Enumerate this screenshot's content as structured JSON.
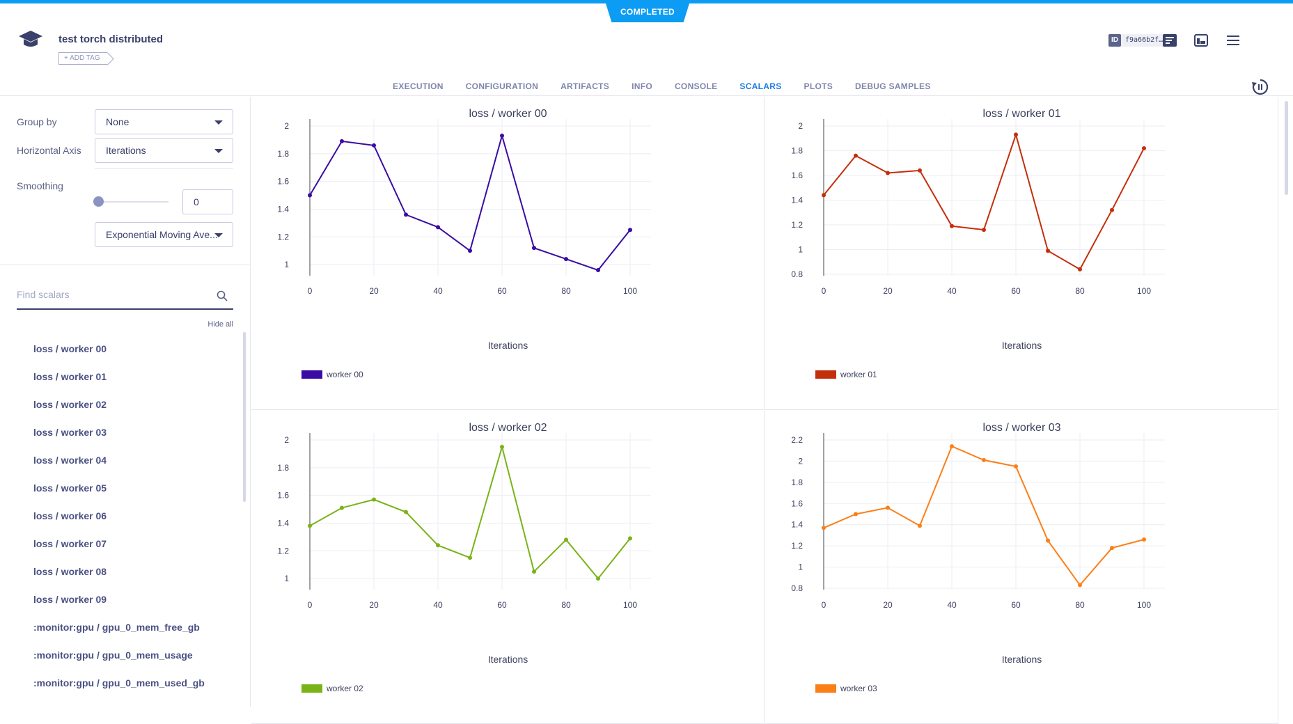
{
  "status": "COMPLETED",
  "header": {
    "title": "test torch distributed",
    "add_tag": "+ ADD TAG",
    "id_label": "ID",
    "id_value": "f9a66b2f…"
  },
  "tabs": [
    {
      "label": "EXECUTION"
    },
    {
      "label": "CONFIGURATION"
    },
    {
      "label": "ARTIFACTS"
    },
    {
      "label": "INFO"
    },
    {
      "label": "CONSOLE"
    },
    {
      "label": "SCALARS",
      "active": true
    },
    {
      "label": "PLOTS"
    },
    {
      "label": "DEBUG SAMPLES"
    }
  ],
  "controls": {
    "group_by_label": "Group by",
    "group_by_value": "None",
    "horizontal_axis_label": "Horizontal Axis",
    "horizontal_axis_value": "Iterations",
    "smoothing_label": "Smoothing",
    "smoothing_value": "0",
    "smoothing_level": 0,
    "smoothing_type": "Exponential Moving Ave..."
  },
  "search": {
    "placeholder": "Find scalars",
    "hide_all": "Hide all"
  },
  "scalars": [
    "loss / worker 00",
    "loss / worker 01",
    "loss / worker 02",
    "loss / worker 03",
    "loss / worker 04",
    "loss / worker 05",
    "loss / worker 06",
    "loss / worker 07",
    "loss / worker 08",
    "loss / worker 09",
    ":monitor:gpu / gpu_0_mem_free_gb",
    ":monitor:gpu / gpu_0_mem_usage",
    ":monitor:gpu / gpu_0_mem_used_gb"
  ],
  "chart_data": [
    {
      "type": "line",
      "title": "loss / worker 00",
      "xlabel": "Iterations",
      "ylabel": "",
      "x": [
        0,
        10,
        20,
        30,
        40,
        50,
        60,
        70,
        80,
        90,
        100
      ],
      "xticks": [
        0,
        20,
        40,
        60,
        80,
        100
      ],
      "yticks": [
        1,
        1.2,
        1.4,
        1.6,
        1.8,
        2
      ],
      "ylim": [
        0.93,
        2.0
      ],
      "grid": true,
      "legend_position": "bottom-left",
      "series": [
        {
          "name": "worker 00",
          "color": "#3a0ca3",
          "values": [
            1.5,
            1.89,
            1.86,
            1.36,
            1.27,
            1.1,
            1.93,
            1.12,
            1.04,
            0.96,
            1.25
          ]
        }
      ]
    },
    {
      "type": "line",
      "title": "loss / worker 01",
      "xlabel": "Iterations",
      "ylabel": "",
      "x": [
        0,
        10,
        20,
        30,
        40,
        50,
        60,
        70,
        80,
        90,
        100
      ],
      "xticks": [
        0,
        20,
        40,
        60,
        80,
        100
      ],
      "yticks": [
        0.8,
        1,
        1.2,
        1.4,
        1.6,
        1.8,
        2
      ],
      "ylim": [
        0.8,
        2.0
      ],
      "grid": true,
      "legend_position": "bottom-left",
      "series": [
        {
          "name": "worker 01",
          "color": "#c32f0a",
          "values": [
            1.44,
            1.76,
            1.62,
            1.64,
            1.19,
            1.16,
            1.93,
            0.99,
            0.84,
            1.32,
            1.82
          ]
        }
      ]
    },
    {
      "type": "line",
      "title": "loss / worker 02",
      "xlabel": "Iterations",
      "ylabel": "",
      "x": [
        0,
        10,
        20,
        30,
        40,
        50,
        60,
        70,
        80,
        90,
        100
      ],
      "xticks": [
        0,
        20,
        40,
        60,
        80,
        100
      ],
      "yticks": [
        1,
        1.2,
        1.4,
        1.6,
        1.8,
        2
      ],
      "ylim": [
        0.93,
        2.0
      ],
      "grid": true,
      "legend_position": "bottom-left",
      "series": [
        {
          "name": "worker 02",
          "color": "#7ab317",
          "values": [
            1.38,
            1.51,
            1.57,
            1.48,
            1.24,
            1.15,
            1.95,
            1.05,
            1.28,
            1.0,
            1.29
          ]
        }
      ]
    },
    {
      "type": "line",
      "title": "loss / worker 03",
      "xlabel": "Iterations",
      "ylabel": "",
      "x": [
        0,
        10,
        20,
        30,
        40,
        50,
        60,
        70,
        80,
        90,
        100
      ],
      "xticks": [
        0,
        20,
        40,
        60,
        80,
        100
      ],
      "yticks": [
        0.8,
        1,
        1.2,
        1.4,
        1.6,
        1.8,
        2,
        2.2
      ],
      "ylim": [
        0.8,
        2.2
      ],
      "grid": true,
      "legend_position": "bottom-left",
      "series": [
        {
          "name": "worker 03",
          "color": "#fb7f17",
          "values": [
            1.37,
            1.5,
            1.56,
            1.39,
            2.14,
            2.01,
            1.95,
            1.25,
            0.83,
            1.18,
            1.26
          ]
        }
      ]
    }
  ]
}
